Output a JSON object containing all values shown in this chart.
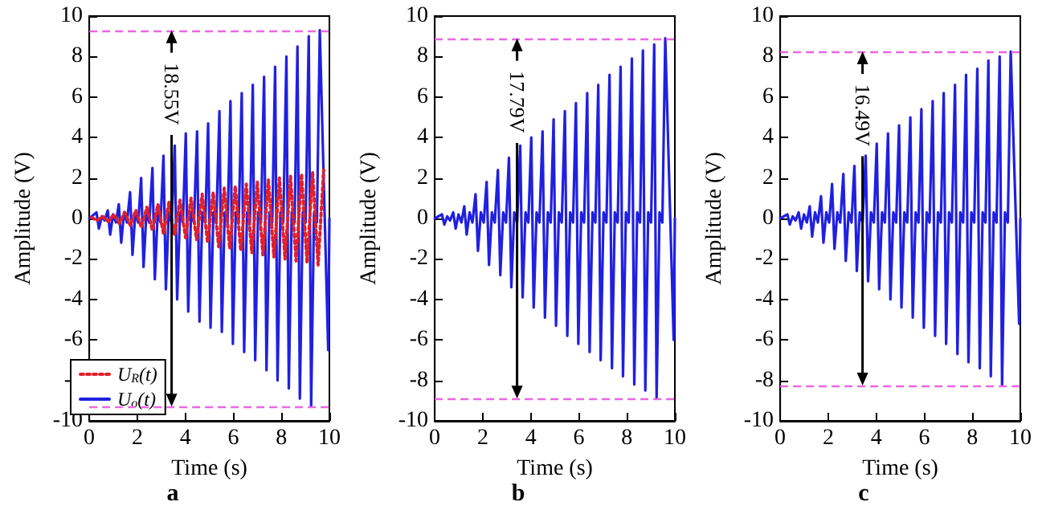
{
  "chart_data": [
    {
      "type": "line",
      "title": "a",
      "xlabel": "Time (s)",
      "ylabel": "Amplitude (V)",
      "xlim": [
        0,
        10
      ],
      "xticks": [
        0,
        2,
        4,
        6,
        8,
        10
      ],
      "ylim": [
        -10,
        10
      ],
      "yticks": [
        -10,
        -8,
        -6,
        -4,
        -2,
        0,
        2,
        4,
        6,
        8,
        10
      ],
      "grid": false,
      "marker": "none",
      "legend": "bottom left",
      "ref_lines": [
        {
          "axis": "y",
          "value": 9.3,
          "color": "#e868e0",
          "line_style": "dashed"
        },
        {
          "axis": "y",
          "value": -9.3,
          "color": "#e868e0",
          "line_style": "dashed"
        }
      ],
      "annotations": [
        "18.55V"
      ],
      "series": [
        {
          "name": "U$_{R}$(t)",
          "color": "#e0202a",
          "line_style": "dotted",
          "x": [
            0.1,
            0.33,
            0.56,
            0.79,
            1.02,
            1.25,
            1.48,
            1.71,
            1.94,
            2.17,
            2.4,
            2.63,
            2.86,
            3.09,
            3.32,
            3.55,
            3.78,
            4.01,
            4.24,
            4.47,
            4.7,
            4.93,
            5.16,
            5.39,
            5.62,
            5.85,
            6.08,
            6.31,
            6.54,
            6.77,
            7.0,
            7.23,
            7.46,
            7.69,
            7.92,
            8.15,
            8.38,
            8.61,
            8.84,
            9.07,
            9.3,
            9.53,
            9.76
          ],
          "values": [
            0.05,
            -0.1,
            0.1,
            -0.15,
            0.2,
            -0.25,
            0.3,
            -0.35,
            0.4,
            -0.45,
            0.55,
            -0.6,
            0.7,
            -0.75,
            0.8,
            -0.85,
            0.9,
            -0.95,
            1.0,
            -1.05,
            1.2,
            -1.2,
            1.3,
            -1.4,
            1.5,
            -1.5,
            1.6,
            -1.6,
            1.7,
            -1.7,
            1.8,
            -1.8,
            1.9,
            -1.9,
            2.0,
            -2.0,
            2.1,
            -2.1,
            2.2,
            -2.2,
            2.3,
            -2.3,
            2.4
          ]
        },
        {
          "name": "U$_{o}$(t)",
          "color": "#2020e0",
          "line_style": "solid",
          "x": [
            0,
            0.3,
            0.4,
            0.52,
            0.64,
            0.77,
            0.87,
            0.99,
            1.11,
            1.23,
            1.33,
            1.45,
            1.57,
            1.7,
            1.8,
            1.92,
            2.04,
            2.16,
            2.26,
            2.38,
            2.5,
            2.63,
            2.73,
            2.85,
            2.97,
            3.09,
            3.19,
            3.31,
            3.43,
            3.56,
            3.66,
            3.78,
            3.9,
            4.02,
            4.12,
            4.24,
            4.36,
            4.49,
            4.59,
            4.71,
            4.83,
            4.95,
            5.05,
            5.17,
            5.29,
            5.42,
            5.52,
            5.64,
            5.76,
            5.88,
            5.98,
            6.1,
            6.22,
            6.35,
            6.45,
            6.57,
            6.69,
            6.81,
            6.91,
            7.03,
            7.15,
            7.28,
            7.38,
            7.5,
            7.62,
            7.74,
            7.84,
            7.96,
            8.08,
            8.21,
            8.31,
            8.43,
            8.55,
            8.67,
            8.77,
            8.89,
            9.01,
            9.14,
            9.24,
            9.36,
            9.48,
            9.6,
            9.95,
            10
          ],
          "values": [
            0,
            0.3,
            -0.5,
            0.1,
            -0.1,
            0.4,
            -0.8,
            0.2,
            -0.2,
            0.7,
            -1.2,
            0.3,
            -0.2,
            1.3,
            -1.8,
            0.3,
            -0.2,
            2.0,
            -2.4,
            0.3,
            -0.2,
            2.5,
            -3.0,
            0.3,
            -0.2,
            3.1,
            -3.5,
            0.3,
            -0.2,
            3.6,
            -4.0,
            0.3,
            -0.2,
            4.2,
            -4.6,
            0.3,
            -0.2,
            4.3,
            -5.1,
            0.3,
            -0.2,
            4.7,
            -5.4,
            0.3,
            -0.2,
            5.3,
            -5.6,
            0.3,
            -0.2,
            5.8,
            -6.2,
            0.3,
            -0.2,
            6.2,
            -6.6,
            0.3,
            -0.2,
            6.6,
            -7.0,
            0.3,
            -0.2,
            7.0,
            -7.5,
            0.3,
            -0.2,
            7.5,
            -8.0,
            0.3,
            -0.2,
            8.0,
            -8.4,
            0.3,
            -0.2,
            8.5,
            -8.9,
            0.3,
            -0.2,
            9.0,
            -9.3,
            0.3,
            -0.2,
            9.3,
            -6.5,
            0
          ]
        }
      ]
    },
    {
      "type": "line",
      "title": "b",
      "xlabel": "Time (s)",
      "ylabel": "Amplitude (V)",
      "xlim": [
        0,
        10
      ],
      "xticks": [
        0,
        2,
        4,
        6,
        8,
        10
      ],
      "ylim": [
        -10,
        10
      ],
      "yticks": [
        -10,
        -8,
        -6,
        -4,
        -2,
        0,
        2,
        4,
        6,
        8,
        10
      ],
      "grid": false,
      "marker": "none",
      "legend": false,
      "ref_lines": [
        {
          "axis": "y",
          "value": 8.9,
          "color": "#e868e0",
          "line_style": "dashed"
        },
        {
          "axis": "y",
          "value": -8.9,
          "color": "#e868e0",
          "line_style": "dashed"
        }
      ],
      "annotations": [
        "17.79V"
      ],
      "series": [
        {
          "color": "#2020e0",
          "line_style": "solid",
          "x": [
            0,
            0.3,
            0.4,
            0.52,
            0.64,
            0.77,
            0.87,
            0.99,
            1.11,
            1.23,
            1.33,
            1.45,
            1.57,
            1.7,
            1.8,
            1.92,
            2.04,
            2.16,
            2.26,
            2.38,
            2.5,
            2.63,
            2.73,
            2.85,
            2.97,
            3.09,
            3.19,
            3.31,
            3.43,
            3.56,
            3.66,
            3.78,
            3.9,
            4.02,
            4.12,
            4.24,
            4.36,
            4.49,
            4.59,
            4.71,
            4.83,
            4.95,
            5.05,
            5.17,
            5.29,
            5.42,
            5.52,
            5.64,
            5.76,
            5.88,
            5.98,
            6.1,
            6.22,
            6.35,
            6.45,
            6.57,
            6.69,
            6.81,
            6.91,
            7.03,
            7.15,
            7.28,
            7.38,
            7.5,
            7.62,
            7.74,
            7.84,
            7.96,
            8.08,
            8.21,
            8.31,
            8.43,
            8.55,
            8.67,
            8.77,
            8.89,
            9.01,
            9.14,
            9.24,
            9.36,
            9.48,
            9.6,
            9.95,
            10
          ],
          "values": [
            0,
            0.2,
            -0.3,
            0.1,
            -0.1,
            0.3,
            -0.5,
            0.2,
            -0.2,
            0.6,
            -0.8,
            0.3,
            -0.2,
            1.2,
            -1.6,
            0.3,
            -0.2,
            1.8,
            -2.3,
            0.3,
            -0.2,
            2.4,
            -2.8,
            0.3,
            -0.2,
            3.0,
            -3.4,
            0.3,
            -0.2,
            3.6,
            -3.9,
            0.3,
            -0.2,
            4.0,
            -4.4,
            0.3,
            -0.2,
            4.3,
            -4.9,
            0.3,
            -0.2,
            4.9,
            -5.3,
            0.3,
            -0.2,
            5.3,
            -5.8,
            0.3,
            -0.2,
            5.7,
            -6.2,
            0.3,
            -0.2,
            6.2,
            -6.6,
            0.3,
            -0.2,
            6.6,
            -7.0,
            0.3,
            -0.2,
            7.1,
            -7.4,
            0.3,
            -0.2,
            7.5,
            -7.8,
            0.3,
            -0.2,
            7.9,
            -8.2,
            0.3,
            -0.2,
            8.3,
            -8.5,
            0.3,
            -0.2,
            8.6,
            -8.9,
            0.3,
            -0.2,
            8.9,
            -6.0,
            0
          ]
        }
      ]
    },
    {
      "type": "line",
      "title": "c",
      "xlabel": "Time (s)",
      "ylabel": "Amplitude (V)",
      "xlim": [
        0,
        10
      ],
      "xticks": [
        0,
        2,
        4,
        6,
        8,
        10
      ],
      "ylim": [
        -10,
        10
      ],
      "yticks": [
        -10,
        -8,
        -6,
        -4,
        -2,
        0,
        2,
        4,
        6,
        8,
        10
      ],
      "grid": false,
      "marker": "none",
      "legend": false,
      "ref_lines": [
        {
          "axis": "y",
          "value": 8.25,
          "color": "#e868e0",
          "line_style": "dashed"
        },
        {
          "axis": "y",
          "value": -8.25,
          "color": "#e868e0",
          "line_style": "dashed"
        }
      ],
      "annotations": [
        "16.49V"
      ],
      "series": [
        {
          "color": "#2020e0",
          "line_style": "solid",
          "x": [
            0,
            0.3,
            0.4,
            0.52,
            0.64,
            0.77,
            0.87,
            0.99,
            1.11,
            1.23,
            1.33,
            1.45,
            1.57,
            1.7,
            1.8,
            1.92,
            2.04,
            2.16,
            2.26,
            2.38,
            2.5,
            2.63,
            2.73,
            2.85,
            2.97,
            3.09,
            3.19,
            3.31,
            3.43,
            3.56,
            3.66,
            3.78,
            3.9,
            4.02,
            4.12,
            4.24,
            4.36,
            4.49,
            4.59,
            4.71,
            4.83,
            4.95,
            5.05,
            5.17,
            5.29,
            5.42,
            5.52,
            5.64,
            5.76,
            5.88,
            5.98,
            6.1,
            6.22,
            6.35,
            6.45,
            6.57,
            6.69,
            6.81,
            6.91,
            7.03,
            7.15,
            7.28,
            7.38,
            7.5,
            7.62,
            7.74,
            7.84,
            7.96,
            8.08,
            8.21,
            8.31,
            8.43,
            8.55,
            8.67,
            8.77,
            8.89,
            9.01,
            9.14,
            9.24,
            9.36,
            9.48,
            9.6,
            9.95,
            10
          ],
          "values": [
            0,
            0.2,
            -0.3,
            0.1,
            -0.1,
            0.3,
            -0.5,
            0.2,
            -0.2,
            0.6,
            -0.9,
            0.3,
            -0.2,
            1.1,
            -1.2,
            0.3,
            -0.2,
            1.7,
            -1.5,
            0.3,
            -0.2,
            2.2,
            -2.1,
            0.3,
            -0.2,
            2.6,
            -2.6,
            0.3,
            -0.2,
            3.1,
            -3.1,
            0.3,
            -0.2,
            3.7,
            -3.5,
            0.3,
            -0.2,
            4.2,
            -4.0,
            0.3,
            -0.2,
            4.6,
            -4.4,
            0.3,
            -0.2,
            5.0,
            -4.9,
            0.3,
            -0.2,
            5.4,
            -5.4,
            0.3,
            -0.2,
            5.8,
            -5.8,
            0.3,
            -0.2,
            6.2,
            -6.2,
            0.3,
            -0.2,
            6.6,
            -6.7,
            0.3,
            -0.2,
            7.1,
            -7.1,
            0.3,
            -0.2,
            7.4,
            -7.4,
            0.3,
            -0.2,
            7.8,
            -7.8,
            0.3,
            -0.2,
            8.0,
            -8.25,
            0.3,
            -0.2,
            8.25,
            -5.2,
            0
          ]
        }
      ]
    }
  ]
}
